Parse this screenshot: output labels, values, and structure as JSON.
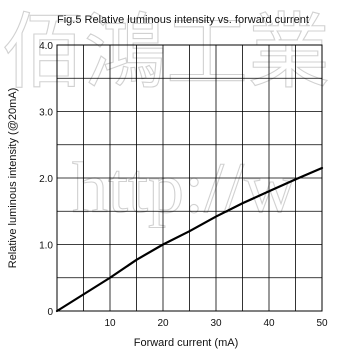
{
  "watermark": {
    "top_text": "佰鴻工業",
    "url_text": "http://w",
    "color": "#c9c9c9"
  },
  "chart_data": {
    "type": "line",
    "title": "Fig.5 Relative luminous intensity vs. forward current",
    "xlabel": "Forward current (mA)",
    "ylabel": "Relative luminous intensity (@20mA)",
    "xlim": [
      0,
      50
    ],
    "ylim": [
      0,
      4.0
    ],
    "x_ticks": [
      10,
      20,
      30,
      40,
      50
    ],
    "y_ticks": [
      0,
      1.0,
      2.0,
      3.0,
      4.0
    ],
    "x_tick_labels": [
      "10",
      "20",
      "30",
      "40",
      "50"
    ],
    "y_tick_labels": [
      "0",
      "1.0",
      "2.0",
      "3.0",
      "4.0"
    ],
    "x_grid": [
      5,
      10,
      15,
      20,
      25,
      30,
      35,
      40,
      45,
      50
    ],
    "y_grid": [
      0.5,
      1.0,
      1.5,
      2.0,
      2.5,
      3.0,
      3.5,
      4.0
    ],
    "grid": true,
    "line_color": "#000000",
    "series": [
      {
        "x": [
          0,
          5,
          10,
          15,
          20,
          25,
          30,
          35,
          40,
          45,
          50
        ],
        "y": [
          0,
          0.25,
          0.5,
          0.77,
          1.0,
          1.2,
          1.42,
          1.62,
          1.8,
          1.98,
          2.15
        ]
      }
    ]
  }
}
